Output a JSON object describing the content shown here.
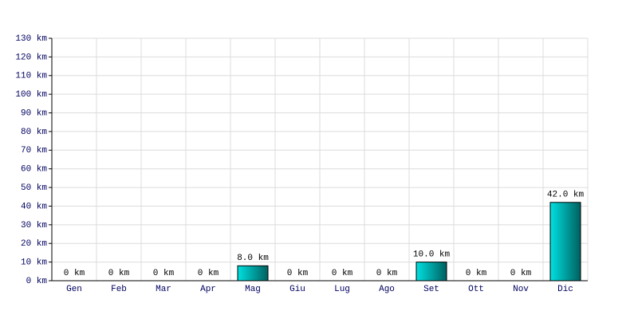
{
  "chart_data": {
    "type": "bar",
    "categories": [
      "Gen",
      "Feb",
      "Mar",
      "Apr",
      "Mag",
      "Giu",
      "Lug",
      "Ago",
      "Set",
      "Ott",
      "Nov",
      "Dic"
    ],
    "values": [
      0,
      0,
      0,
      0,
      8,
      0,
      0,
      0,
      10,
      0,
      0,
      42
    ],
    "value_labels": [
      "0 km",
      "0 km",
      "0 km",
      "0 km",
      "8.0 km",
      "0 km",
      "0 km",
      "0 km",
      "10.0 km",
      "0 km",
      "0 km",
      "42.0 km"
    ],
    "color": "#00e0e0",
    "ylim": [
      0,
      130
    ],
    "yticks": [
      {
        "value": 0,
        "label": "0 km"
      },
      {
        "value": 10,
        "label": "10 km"
      },
      {
        "value": 20,
        "label": "20 km"
      },
      {
        "value": 30,
        "label": "30 km"
      },
      {
        "value": 40,
        "label": "40 km"
      },
      {
        "value": 50,
        "label": "50 km"
      },
      {
        "value": 60,
        "label": "60 km"
      },
      {
        "value": 70,
        "label": "70 km"
      },
      {
        "value": 80,
        "label": "80 km"
      },
      {
        "value": 90,
        "label": "90 km"
      },
      {
        "value": 100,
        "label": "100 km"
      },
      {
        "value": 110,
        "label": "110 km"
      },
      {
        "value": 120,
        "label": "120 km"
      },
      {
        "value": 130,
        "label": "130 km"
      }
    ],
    "grid": true
  }
}
